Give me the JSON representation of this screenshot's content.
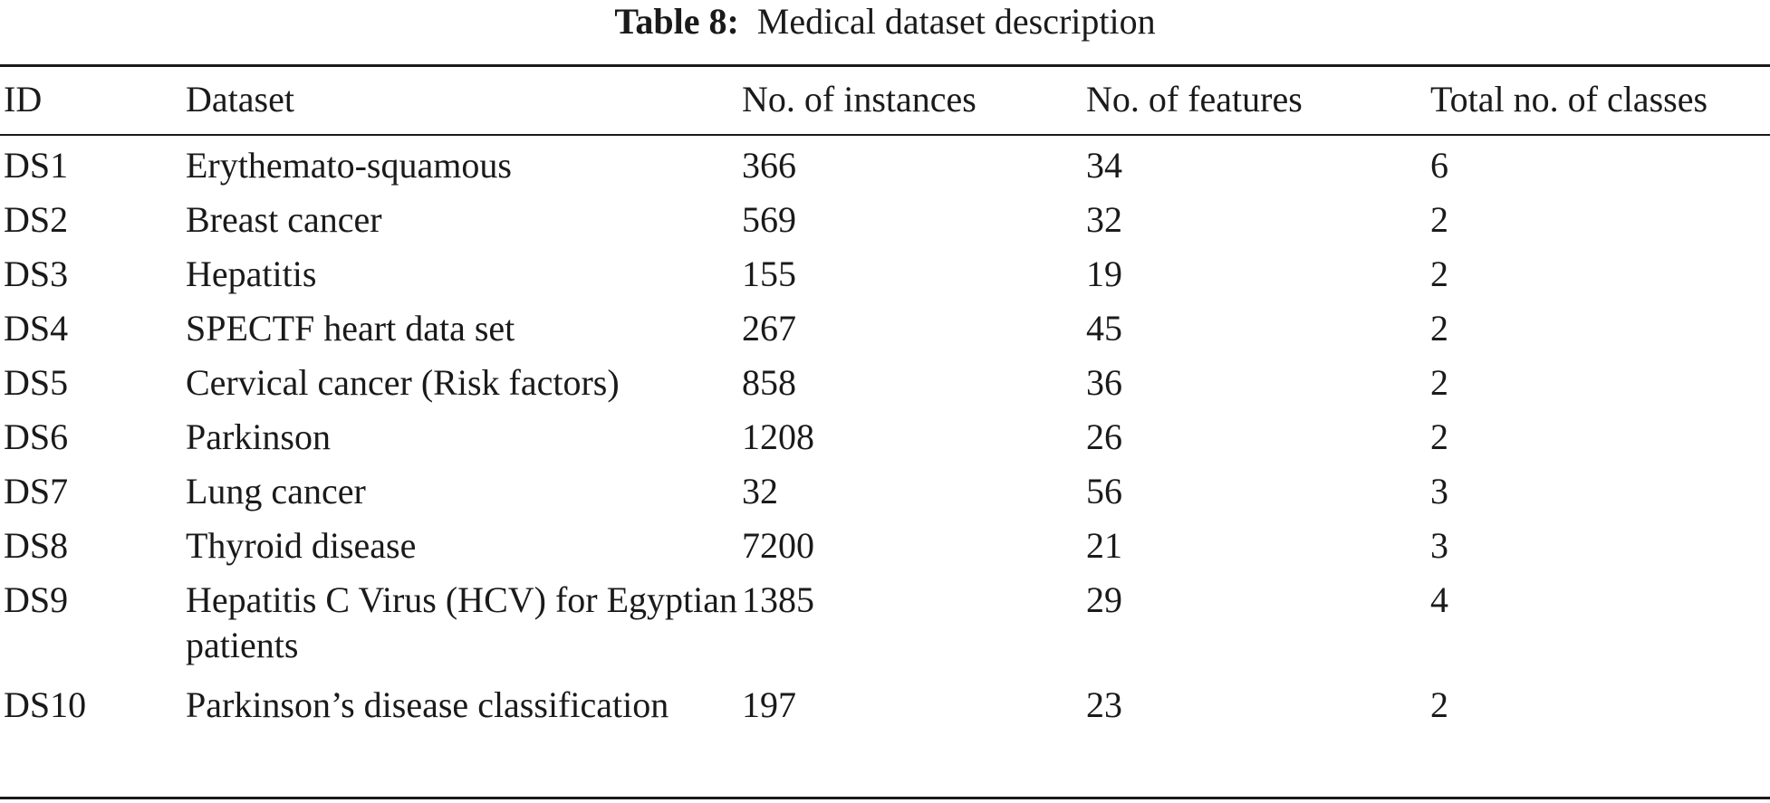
{
  "caption": {
    "label": "Table 8:",
    "text": "Medical dataset description"
  },
  "table": {
    "headers": [
      "ID",
      "Dataset",
      "No. of instances",
      "No. of features",
      "Total no. of classes"
    ],
    "rows": [
      [
        "DS1",
        "Erythemato-squamous",
        "366",
        "34",
        "6"
      ],
      [
        "DS2",
        "Breast cancer",
        "569",
        "32",
        "2"
      ],
      [
        "DS3",
        "Hepatitis",
        "155",
        "19",
        "2"
      ],
      [
        "DS4",
        "SPECTF heart data set",
        "267",
        "45",
        "2"
      ],
      [
        "DS5",
        "Cervical cancer (Risk factors)",
        "858",
        "36",
        "2"
      ],
      [
        "DS6",
        "Parkinson",
        "1208",
        "26",
        "2"
      ],
      [
        "DS7",
        "Lung cancer",
        "32",
        "56",
        "3"
      ],
      [
        "DS8",
        "Thyroid disease",
        "7200",
        "21",
        "3"
      ],
      [
        "DS9",
        "Hepatitis C Virus (HCV) for Egyptian patients",
        "1385",
        "29",
        "4"
      ],
      [
        "DS10",
        "Parkinson’s disease classification",
        "197",
        "23",
        "2"
      ]
    ]
  }
}
